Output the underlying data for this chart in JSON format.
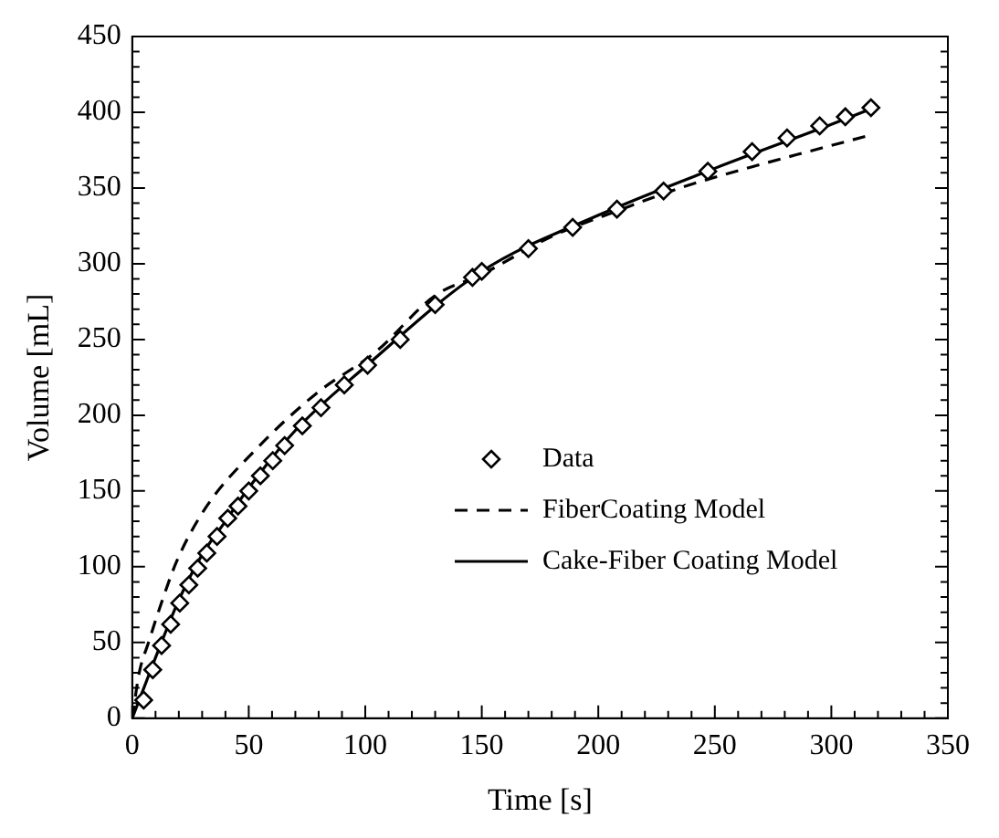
{
  "chart_data": {
    "type": "line",
    "xlabel": "Time [s]",
    "ylabel": "Volume [mL]",
    "xlim": [
      0,
      350
    ],
    "ylim": [
      0,
      450
    ],
    "xticks": [
      0,
      50,
      100,
      150,
      200,
      250,
      300,
      350
    ],
    "yticks": [
      0,
      50,
      100,
      150,
      200,
      250,
      300,
      350,
      400,
      450
    ],
    "grid": false,
    "legend": "right",
    "series": [
      {
        "name": "Data",
        "type": "scatter",
        "marker": "diamond",
        "color": "#000000",
        "x": [
          4.9,
          8.8,
          12.6,
          16.5,
          20.4,
          24.3,
          28.1,
          32,
          36.4,
          41,
          45.4,
          50,
          55,
          60.3,
          65.4,
          73,
          81,
          91,
          101,
          115,
          130,
          146,
          150,
          170,
          189,
          208,
          228,
          247,
          266,
          281,
          295,
          306,
          317
        ],
        "values": [
          12,
          32,
          48,
          62,
          76,
          88,
          99,
          109,
          120,
          132,
          140,
          150,
          160,
          170,
          180,
          193,
          205,
          220,
          233,
          250,
          273,
          291,
          295,
          310,
          324,
          336,
          348,
          361,
          374,
          383,
          391,
          397,
          403
        ]
      },
      {
        "name": "FiberCoating Model",
        "type": "line",
        "line_style": "dashed",
        "marker": "none",
        "color": "#000000",
        "x": [
          0,
          3,
          7,
          11.4,
          19.2,
          32,
          52.8,
          78.7,
          104.6,
          130,
          150,
          180,
          210,
          235,
          266,
          290,
          317
        ],
        "values": [
          0,
          30,
          50,
          71,
          104,
          140,
          177,
          214,
          242,
          279,
          293,
          318,
          336,
          350,
          364,
          374,
          385
        ]
      },
      {
        "name": "Cake-Fiber Coating Model",
        "type": "line",
        "line_style": "solid",
        "marker": "none",
        "color": "#000000",
        "x": [
          0,
          5,
          10,
          20,
          30,
          40,
          50,
          70,
          100,
          150,
          200,
          250,
          300,
          320
        ],
        "values": [
          0,
          20,
          40,
          78,
          108,
          130,
          152,
          190,
          232,
          295,
          332,
          363,
          392,
          404
        ]
      }
    ]
  }
}
